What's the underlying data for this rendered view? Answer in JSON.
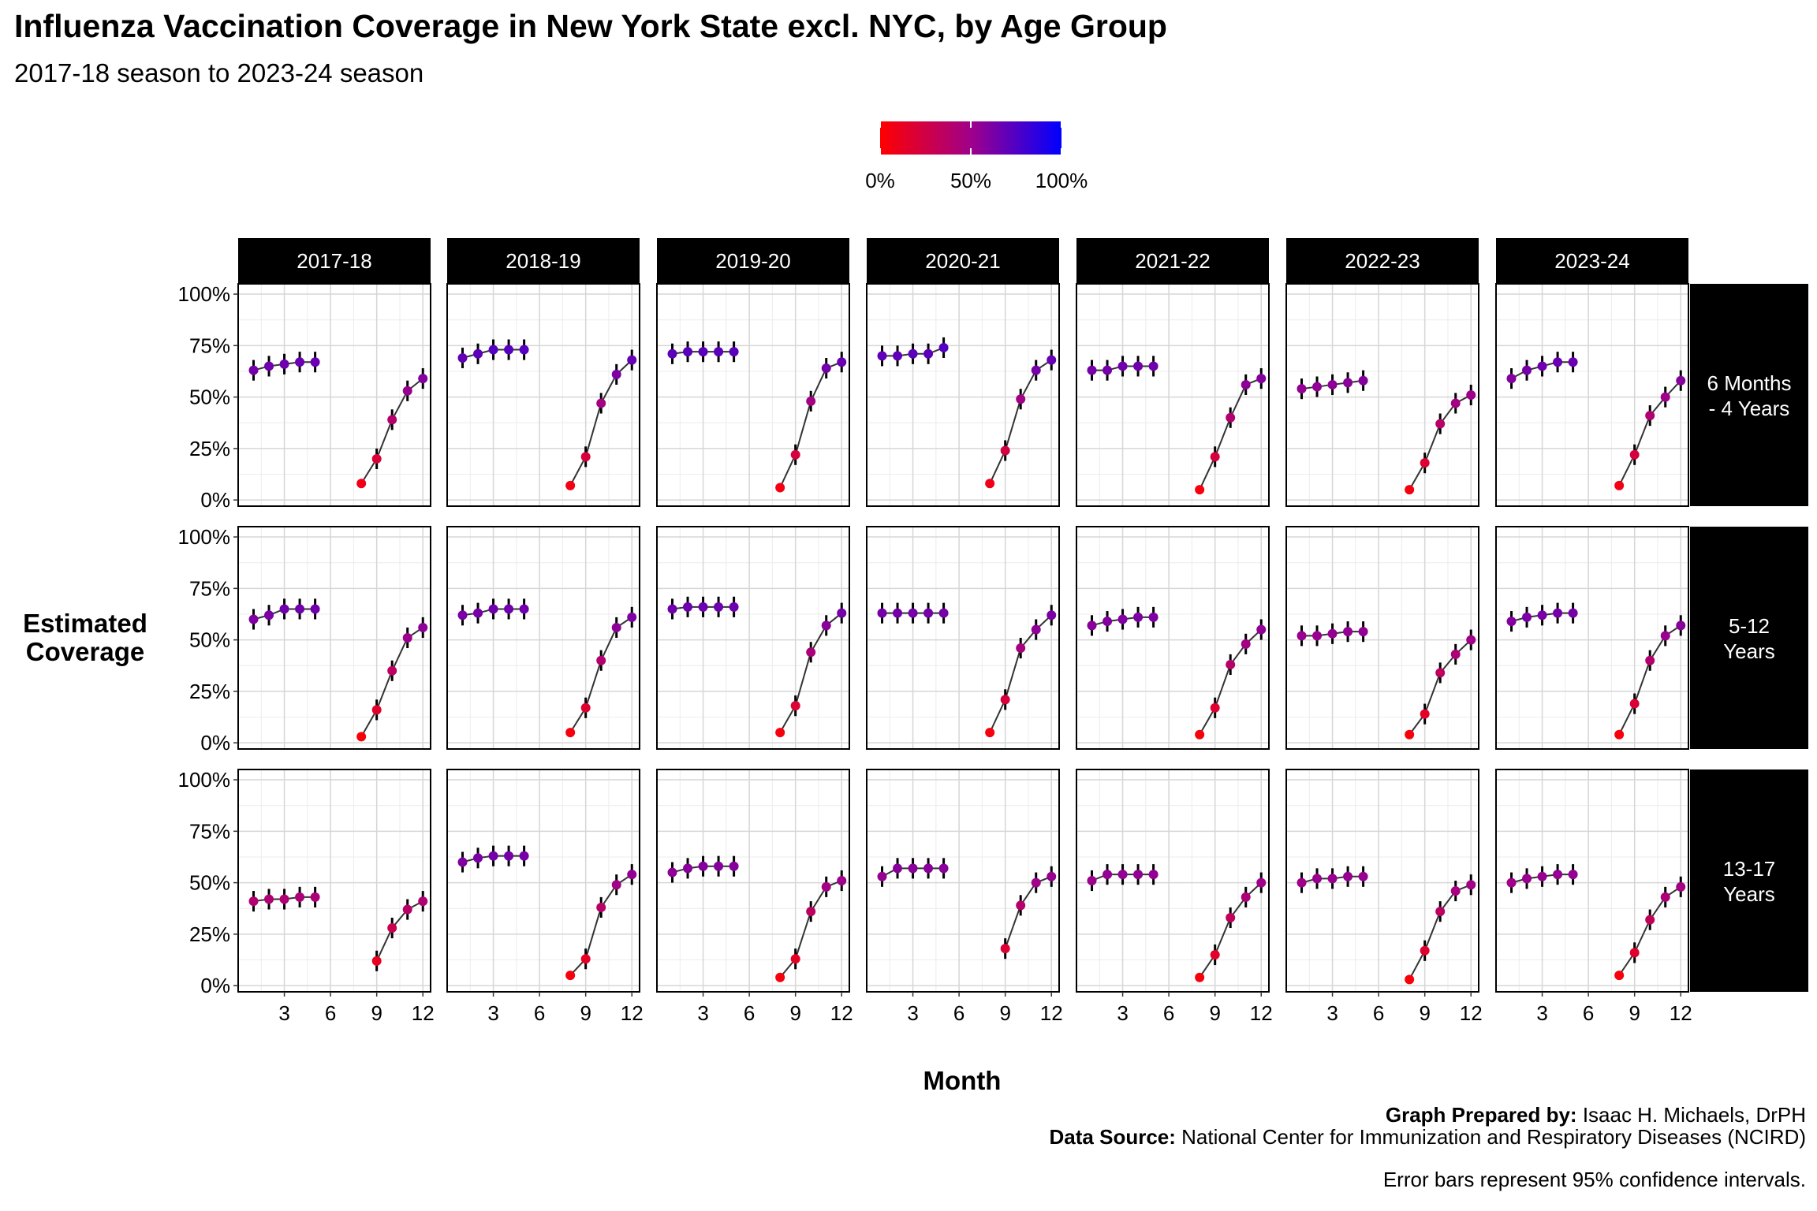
{
  "chart_data": {
    "type": "scatter",
    "title": "Influenza Vaccination Coverage in New York State excl. NYC, by Age Group",
    "subtitle": "2017-18 season to 2023-24 season",
    "xlabel": "Month",
    "ylabel_line1": "Estimated",
    "ylabel_line2": "Coverage",
    "xlim": [
      0,
      12.5
    ],
    "ylim": [
      -3,
      105
    ],
    "x_ticks": [
      3,
      6,
      9,
      12
    ],
    "y_ticks": [
      0,
      25,
      50,
      75,
      100
    ],
    "y_tick_labels": [
      "0%",
      "25%",
      "50%",
      "75%",
      "100%"
    ],
    "grid": true,
    "legend": {
      "position": "top",
      "color_low": "#ff0000",
      "color_mid": "#a0008a",
      "color_high": "#0000ff",
      "labels": [
        "0%",
        "50%",
        "100%"
      ]
    },
    "seasons": [
      "2017-18",
      "2018-19",
      "2019-20",
      "2020-21",
      "2021-22",
      "2022-23",
      "2023-24"
    ],
    "age_groups": [
      {
        "line1": "6 Months",
        "line2": "- 4 Years"
      },
      {
        "line1": "5-12",
        "line2": "Years"
      },
      {
        "line1": "13-17",
        "line2": "Years"
      }
    ],
    "early_months": [
      1,
      2,
      3,
      4,
      5
    ],
    "late_months": [
      8,
      9,
      10,
      11,
      12
    ],
    "panels": [
      [
        {
          "early": [
            63,
            65,
            66,
            67,
            67
          ],
          "late": [
            8,
            20,
            39,
            53,
            59
          ]
        },
        {
          "early": [
            69,
            71,
            73,
            73,
            73
          ],
          "late": [
            7,
            21,
            47,
            61,
            68
          ]
        },
        {
          "early": [
            71,
            72,
            72,
            72,
            72
          ],
          "late": [
            6,
            22,
            48,
            64,
            67
          ]
        },
        {
          "early": [
            70,
            70,
            71,
            71,
            74
          ],
          "late": [
            8,
            24,
            49,
            63,
            68
          ]
        },
        {
          "early": [
            63,
            63,
            65,
            65,
            65
          ],
          "late": [
            5,
            21,
            40,
            56,
            59
          ]
        },
        {
          "early": [
            54,
            55,
            56,
            57,
            58
          ],
          "late": [
            5,
            18,
            37,
            47,
            51
          ]
        },
        {
          "early": [
            59,
            63,
            65,
            67,
            67
          ],
          "late": [
            7,
            22,
            41,
            50,
            58
          ]
        }
      ],
      [
        {
          "early": [
            60,
            62,
            65,
            65,
            65
          ],
          "late": [
            3,
            16,
            35,
            51,
            56
          ]
        },
        {
          "early": [
            62,
            63,
            65,
            65,
            65
          ],
          "late": [
            5,
            17,
            40,
            56,
            61
          ]
        },
        {
          "early": [
            65,
            66,
            66,
            66,
            66
          ],
          "late": [
            5,
            18,
            44,
            57,
            63
          ]
        },
        {
          "early": [
            63,
            63,
            63,
            63,
            63
          ],
          "late": [
            5,
            21,
            46,
            55,
            62
          ]
        },
        {
          "early": [
            57,
            59,
            60,
            61,
            61
          ],
          "late": [
            4,
            17,
            38,
            48,
            55
          ]
        },
        {
          "early": [
            52,
            52,
            53,
            54,
            54
          ],
          "late": [
            4,
            14,
            34,
            43,
            50
          ]
        },
        {
          "early": [
            59,
            61,
            62,
            63,
            63
          ],
          "late": [
            4,
            19,
            40,
            52,
            57
          ]
        }
      ],
      [
        {
          "early": [
            41,
            42,
            42,
            43,
            43
          ],
          "late": [
            12,
            28,
            37,
            41
          ]
        },
        {
          "early": [
            60,
            62,
            63,
            63,
            63
          ],
          "late": [
            5,
            13,
            38,
            49,
            54
          ]
        },
        {
          "early": [
            55,
            57,
            58,
            58,
            58
          ],
          "late": [
            4,
            13,
            36,
            48,
            51
          ]
        },
        {
          "early": [
            53,
            57,
            57,
            57,
            57
          ],
          "late": [
            18,
            39,
            50,
            53
          ]
        },
        {
          "early": [
            51,
            54,
            54,
            54,
            54
          ],
          "late": [
            4,
            15,
            33,
            43,
            50
          ]
        },
        {
          "early": [
            50,
            52,
            52,
            53,
            53
          ],
          "late": [
            3,
            17,
            36,
            46,
            49
          ]
        },
        {
          "early": [
            50,
            52,
            53,
            54,
            54
          ],
          "late": [
            5,
            16,
            32,
            43,
            48
          ]
        }
      ]
    ],
    "late_months_short": [
      9,
      10,
      11,
      12
    ]
  },
  "footer": {
    "prepared_label": "Graph Prepared by:",
    "prepared_value": " Isaac H. Michaels, DrPH",
    "source_label": "Data Source:",
    "source_value": " National Center for Immunization and Respiratory Diseases (NCIRD)",
    "note": "Error bars represent 95% confidence intervals."
  }
}
